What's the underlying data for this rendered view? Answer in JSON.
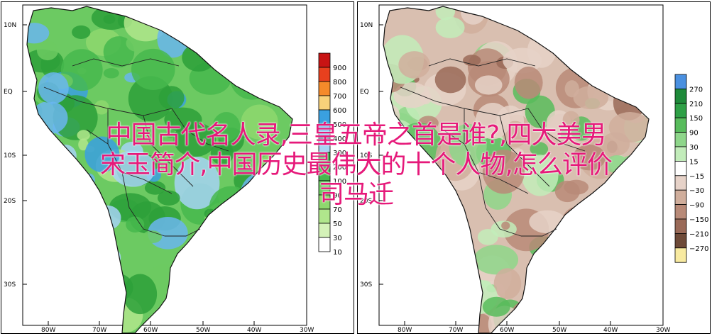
{
  "panels": [
    {
      "id": "left",
      "lat_labels": [
        "10N",
        "EQ",
        "10S",
        "20S",
        "30S"
      ],
      "lon_labels": [
        "80W",
        "70W",
        "60W",
        "50W",
        "40W",
        "30W"
      ],
      "legend": {
        "values": [
          "900",
          "800",
          "700",
          "600",
          "500",
          "400",
          "300",
          "200",
          "100",
          "90",
          "70",
          "50",
          "30",
          "10"
        ],
        "colors": [
          "#c81414",
          "#e8401e",
          "#f58a2a",
          "#f8d27a",
          "#3aa0e0",
          "#6ab6ee",
          "#a6d4f4",
          "#2da03a",
          "#46b84e",
          "#6cca62",
          "#8ed86e",
          "#b0e68c",
          "#d4f2b8",
          "#ffffff"
        ]
      }
    },
    {
      "id": "right",
      "lat_labels": [
        "10N",
        "EQ",
        "10S",
        "20S",
        "30S"
      ],
      "lon_labels": [
        "80W",
        "70W",
        "60W",
        "50W",
        "40W",
        "30W"
      ],
      "legend": {
        "values": [
          "270",
          "210",
          "150",
          "90",
          "30",
          "15",
          "−15",
          "−30",
          "−90",
          "−150",
          "−210",
          "−270"
        ],
        "colors": [
          "#4a90e0",
          "#1e8a3a",
          "#2ea046",
          "#58bc5c",
          "#8ed68a",
          "#c2ecba",
          "#ffffff",
          "#e6d2c8",
          "#d0ae9c",
          "#b88a78",
          "#9a6a58",
          "#6e4a38",
          "#f8eaa0"
        ]
      }
    }
  ],
  "overlay_lines": [
    "中国古代名人录,三皇五帝之首是谁?,四大美男",
    "宋玉简介,中国历史最伟大的十个人物,怎么评价",
    "司马迁"
  ]
}
